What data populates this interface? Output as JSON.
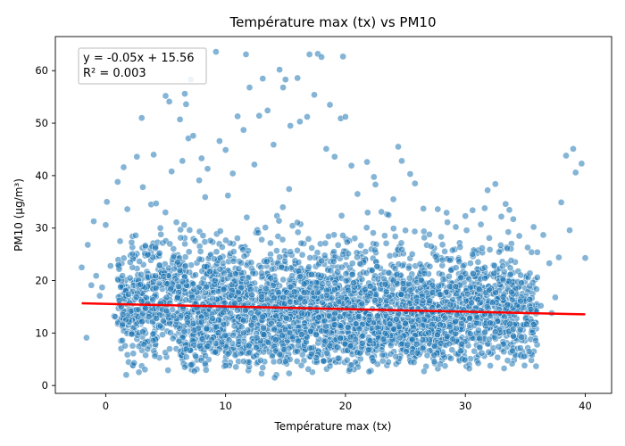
{
  "chart_data": {
    "type": "scatter",
    "title": "Température max (tx) vs PM10",
    "xlabel": "Température max (tx)",
    "ylabel": "PM10 (µg/m³)",
    "xlim": [
      -4.2,
      42.2
    ],
    "ylim": [
      -1.5,
      66.5
    ],
    "xticks": [
      0,
      10,
      20,
      30,
      40
    ],
    "yticks": [
      0,
      10,
      20,
      30,
      40,
      50,
      60
    ],
    "grid": false,
    "annotation": {
      "line1": "y = -0.05x + 15.56",
      "line2": "R² = 0.003",
      "placement": "top-left"
    },
    "regression": {
      "slope": -0.05,
      "intercept": 15.56,
      "x_range": [
        -2,
        40
      ]
    },
    "colors": {
      "points": "#1f77b4",
      "regression_line": "#ff0000"
    },
    "points": [
      [
        -2,
        22.5
      ],
      [
        -1.6,
        9.1
      ],
      [
        -1.5,
        26.8
      ],
      [
        -1,
        31.3
      ],
      [
        -0.8,
        20.9
      ],
      [
        -0.3,
        18.7
      ],
      [
        0,
        30.6
      ],
      [
        0.1,
        35
      ],
      [
        0.4,
        22.8
      ],
      [
        0.7,
        13.2
      ],
      [
        1,
        38.8
      ],
      [
        1.2,
        27.5
      ],
      [
        1.5,
        41.6
      ],
      [
        1.8,
        33.6
      ],
      [
        1.9,
        17.4
      ],
      [
        2.3,
        6.1
      ],
      [
        2.5,
        28.6
      ],
      [
        2.6,
        43.6
      ],
      [
        3,
        51
      ],
      [
        3.1,
        37.8
      ],
      [
        3.5,
        24.9
      ],
      [
        3.6,
        13.1
      ],
      [
        4,
        44
      ],
      [
        4.2,
        34.7
      ],
      [
        4.6,
        28.8
      ],
      [
        5,
        55.2
      ],
      [
        5.3,
        54.1
      ],
      [
        5.5,
        40.8
      ],
      [
        5.9,
        31.1
      ],
      [
        6.2,
        50.7
      ],
      [
        6.4,
        42.8
      ],
      [
        6.6,
        55.6
      ],
      [
        6.7,
        53.6
      ],
      [
        6.9,
        47.1
      ],
      [
        7.1,
        58.3
      ],
      [
        7.3,
        47.6
      ],
      [
        7.8,
        39.1
      ],
      [
        8,
        43.3
      ],
      [
        8.3,
        35.9
      ],
      [
        8.5,
        41.3
      ],
      [
        9.2,
        63.6
      ],
      [
        9.5,
        46.6
      ],
      [
        10,
        44.9
      ],
      [
        10.2,
        36.2
      ],
      [
        10.6,
        40.4
      ],
      [
        11,
        51.3
      ],
      [
        11.5,
        48.7
      ],
      [
        11.7,
        63.1
      ],
      [
        12,
        56.8
      ],
      [
        12.4,
        42.1
      ],
      [
        12.8,
        51.4
      ],
      [
        13.1,
        58.5
      ],
      [
        13.5,
        52.4
      ],
      [
        14,
        45.9
      ],
      [
        14.5,
        60.2
      ],
      [
        14.8,
        56.8
      ],
      [
        15,
        58.3
      ],
      [
        15.4,
        49.5
      ],
      [
        16,
        58.6
      ],
      [
        16.2,
        50.3
      ],
      [
        16.8,
        51.2
      ],
      [
        17,
        63.1
      ],
      [
        17.4,
        55.4
      ],
      [
        17.7,
        63.2
      ],
      [
        18,
        62.6
      ],
      [
        18.4,
        45.1
      ],
      [
        18.7,
        53.5
      ],
      [
        19.1,
        43.6
      ],
      [
        19.6,
        50.9
      ],
      [
        19.8,
        62.7
      ],
      [
        20,
        51.2
      ],
      [
        20.5,
        41.9
      ],
      [
        21,
        36.5
      ],
      [
        21.8,
        42.6
      ],
      [
        22.5,
        38.3
      ],
      [
        23,
        33.1
      ],
      [
        23.6,
        32.5
      ],
      [
        24,
        35.5
      ],
      [
        24.4,
        45.5
      ],
      [
        24.7,
        42.8
      ],
      [
        25.4,
        40.3
      ],
      [
        25.8,
        38.5
      ],
      [
        26.5,
        33.7
      ],
      [
        27,
        28.8
      ],
      [
        27.7,
        33.6
      ],
      [
        28.5,
        31.1
      ],
      [
        29.2,
        30.2
      ],
      [
        30,
        32.3
      ],
      [
        30.6,
        33.4
      ],
      [
        31.3,
        30.7
      ],
      [
        32,
        28.1
      ],
      [
        32.5,
        38.4
      ],
      [
        33,
        32.2
      ],
      [
        33.5,
        26.1
      ],
      [
        34,
        31.7
      ],
      [
        34.5,
        28.5
      ],
      [
        35.2,
        26.3
      ],
      [
        35.7,
        30.2
      ],
      [
        36,
        25.4
      ],
      [
        36.5,
        28.7
      ],
      [
        37,
        23.3
      ],
      [
        37.5,
        16.8
      ],
      [
        38,
        34.9
      ],
      [
        38.4,
        43.8
      ],
      [
        38.7,
        29.6
      ],
      [
        39,
        45.1
      ],
      [
        39.2,
        40.6
      ],
      [
        39.7,
        42.3
      ],
      [
        40,
        24.3
      ],
      [
        36.3,
        15.2
      ],
      [
        37.2,
        13.8
      ],
      [
        35.1,
        11.7
      ],
      [
        34,
        10.7
      ],
      [
        32.5,
        10.2
      ],
      [
        31.2,
        7.3
      ],
      [
        29.6,
        6.6
      ],
      [
        27.4,
        5.8
      ],
      [
        26,
        6.2
      ],
      [
        24.2,
        5.5
      ],
      [
        22.3,
        4.7
      ],
      [
        20.5,
        3.9
      ],
      [
        18.7,
        3.7
      ],
      [
        16.9,
        3.1
      ],
      [
        15.3,
        2.3
      ],
      [
        14.1,
        1.5
      ],
      [
        13.1,
        3.4
      ],
      [
        11.5,
        4.6
      ],
      [
        10,
        3.8
      ],
      [
        8.3,
        4.2
      ],
      [
        6.6,
        3.5
      ],
      [
        5.2,
        2.9
      ],
      [
        4.1,
        5.6
      ],
      [
        3.2,
        7.8
      ],
      [
        2.2,
        9.8
      ],
      [
        1.4,
        11.7
      ],
      [
        0.8,
        13.1
      ],
      [
        -0.5,
        17.1
      ],
      [
        -1.2,
        19.1
      ],
      [
        36,
        20.6
      ],
      [
        37.8,
        24.4
      ]
    ],
    "dense_regions": [
      {
        "x": [
          1,
          36
        ],
        "y_center": [
          15.5,
          14.0
        ],
        "y_spread": 6.5,
        "count": 2600
      },
      {
        "x": [
          2,
          34
        ],
        "y_center": [
          22,
          20
        ],
        "y_spread": 7,
        "count": 500
      },
      {
        "x": [
          6,
          30
        ],
        "y_center": [
          8,
          9
        ],
        "y_spread": 3.2,
        "count": 600
      }
    ]
  }
}
